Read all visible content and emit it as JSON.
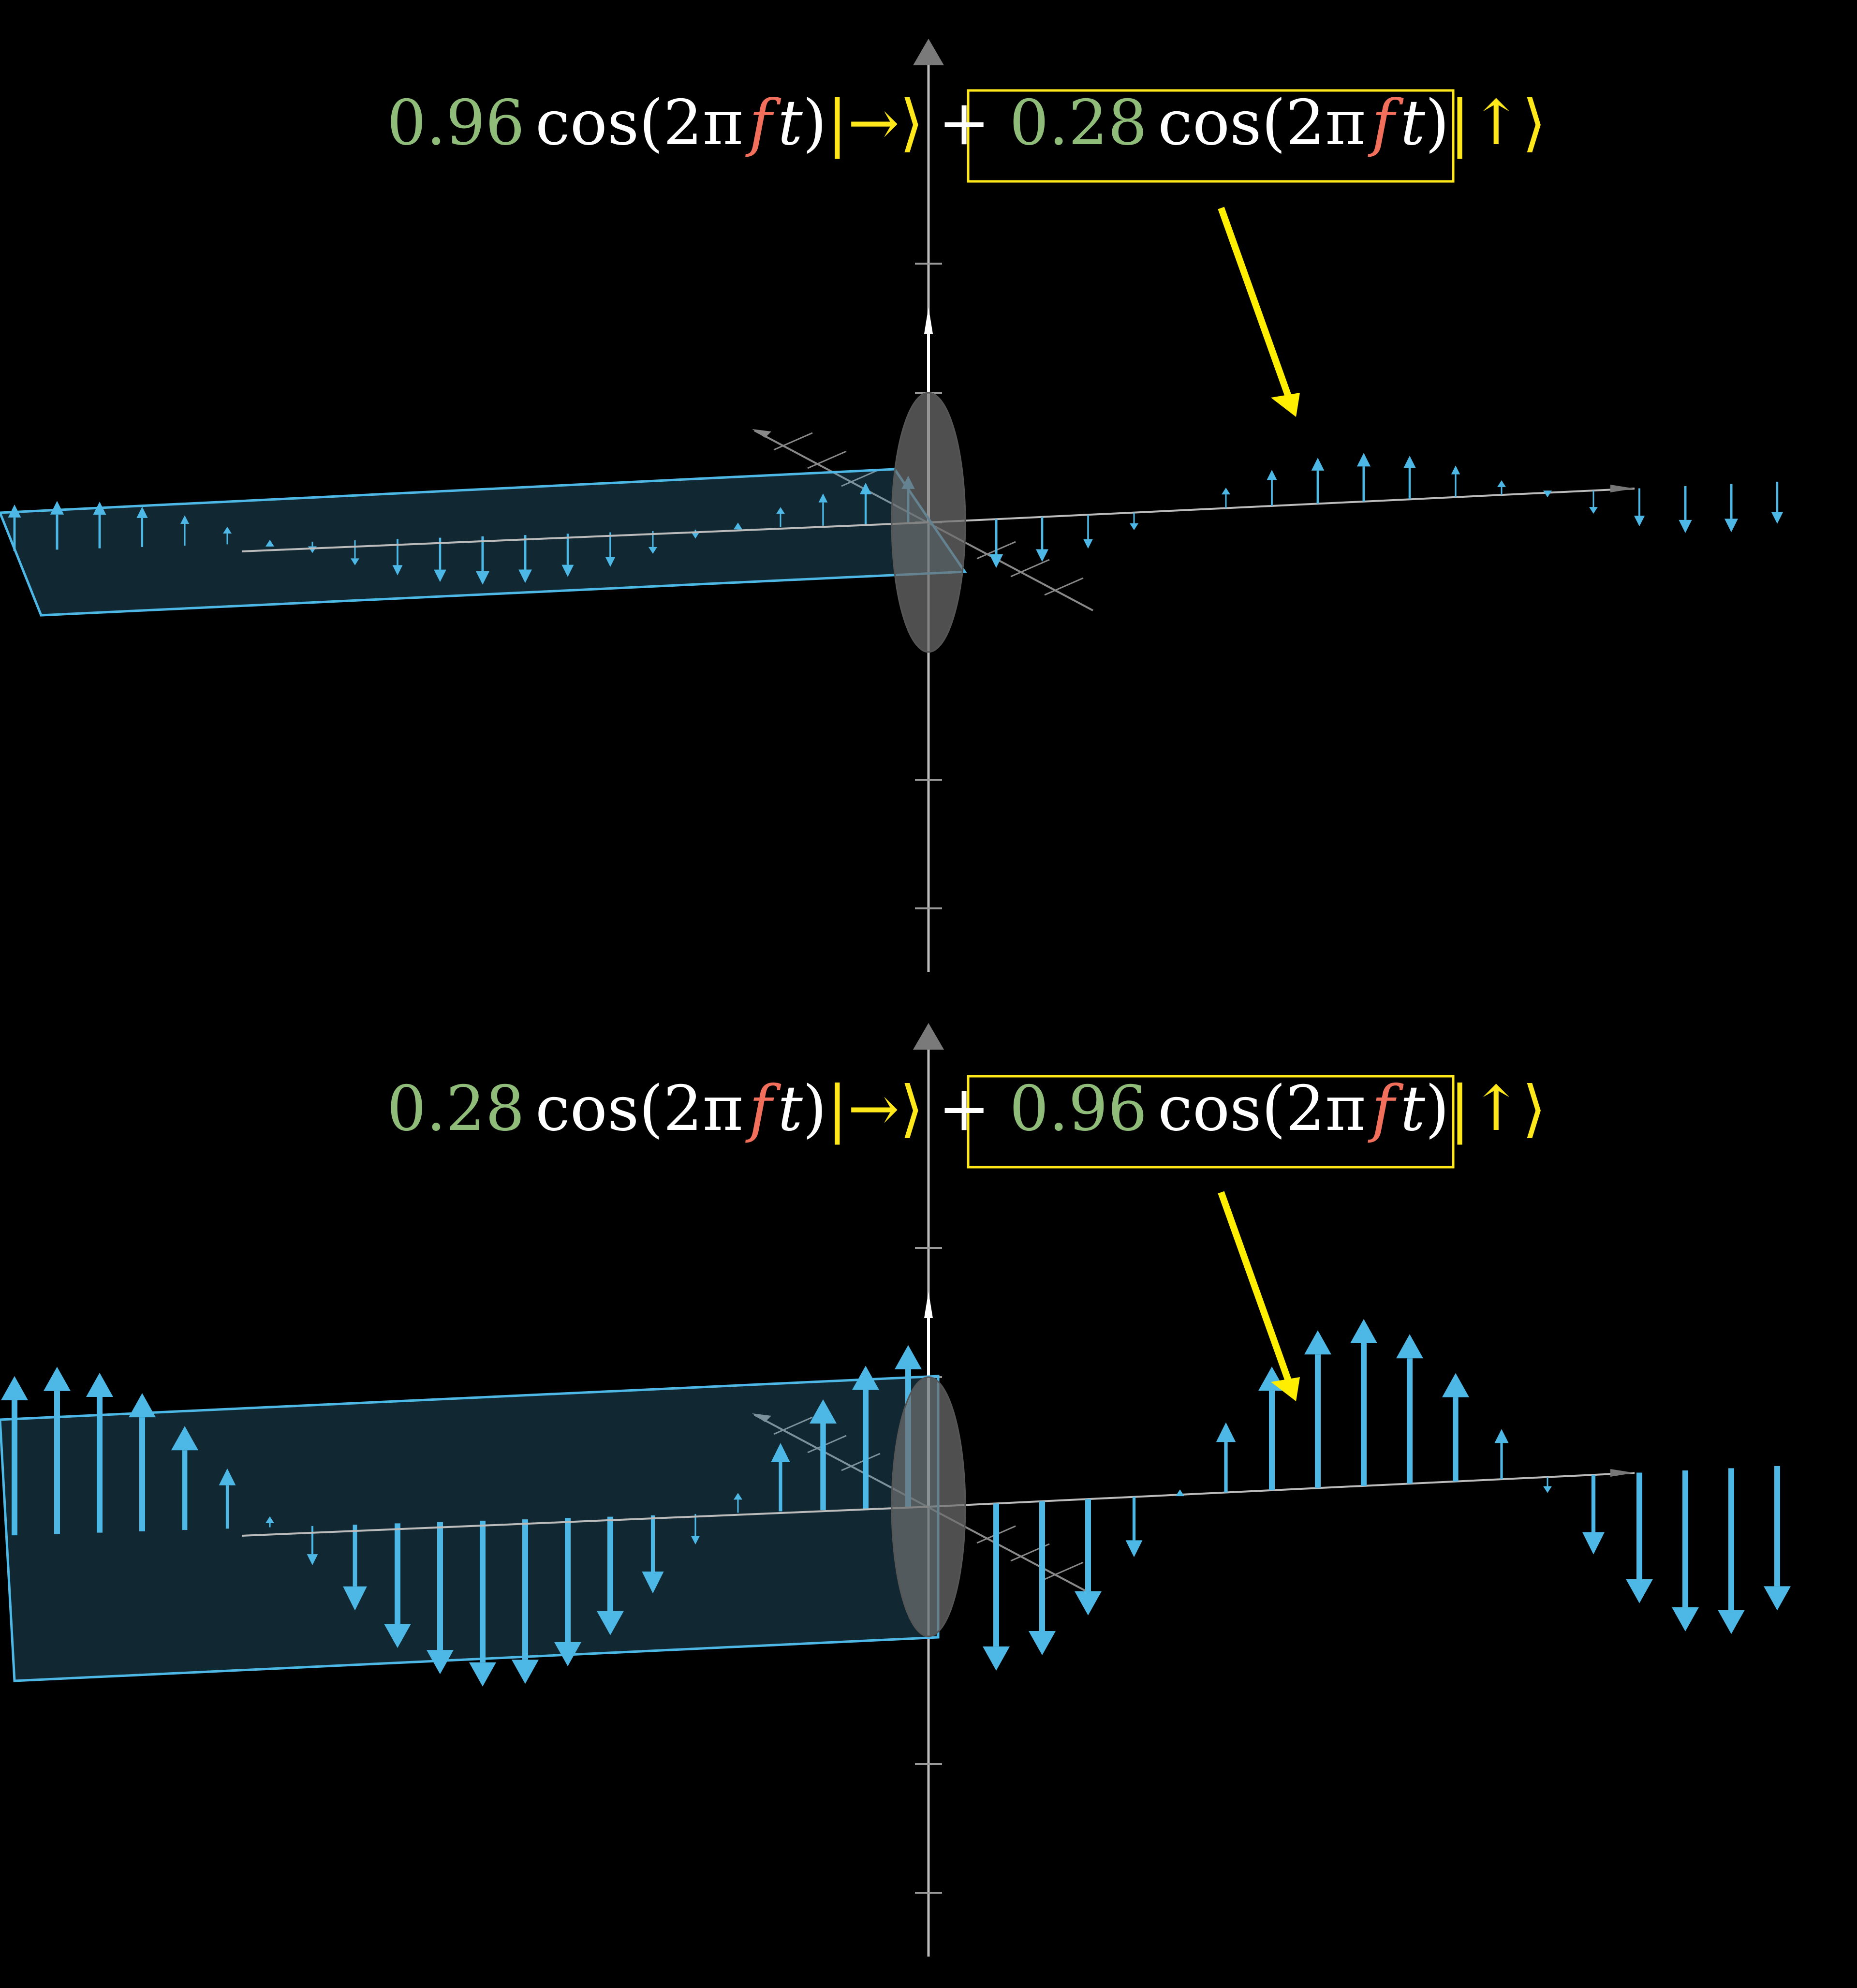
{
  "panels": [
    {
      "equation": {
        "coef1": "0.96",
        "cos_open": "cos(2π",
        "f": "f",
        "t": "t",
        "close": ")",
        "ket1": "|→⟩",
        "plus": "+",
        "coef2": "0.28",
        "ket2": "|↑⟩"
      },
      "horizontal_amplitude": 0.96,
      "vertical_amplitude": 0.28,
      "highlighted_term": 2
    },
    {
      "equation": {
        "coef1": "0.28",
        "cos_open": "cos(2π",
        "f": "f",
        "t": "t",
        "close": ")",
        "ket1": "|→⟩",
        "plus": "+",
        "coef2": "0.96",
        "ket2": "|↑⟩"
      },
      "horizontal_amplitude": 0.28,
      "vertical_amplitude": 0.96,
      "highlighted_term": 2
    }
  ],
  "colors": {
    "background": "#000000",
    "coefficient": "#8fbc78",
    "frequency": "#f26f5c",
    "ket": "#ffe81a",
    "highlight_box": "#ffe81a",
    "pointer_arrow": "#ffee00",
    "wave_vectors": "#4db8e6",
    "filter_band": "#4db8e6",
    "filter_disc": "#6a6a6a",
    "axes": "#bbbbbb"
  }
}
